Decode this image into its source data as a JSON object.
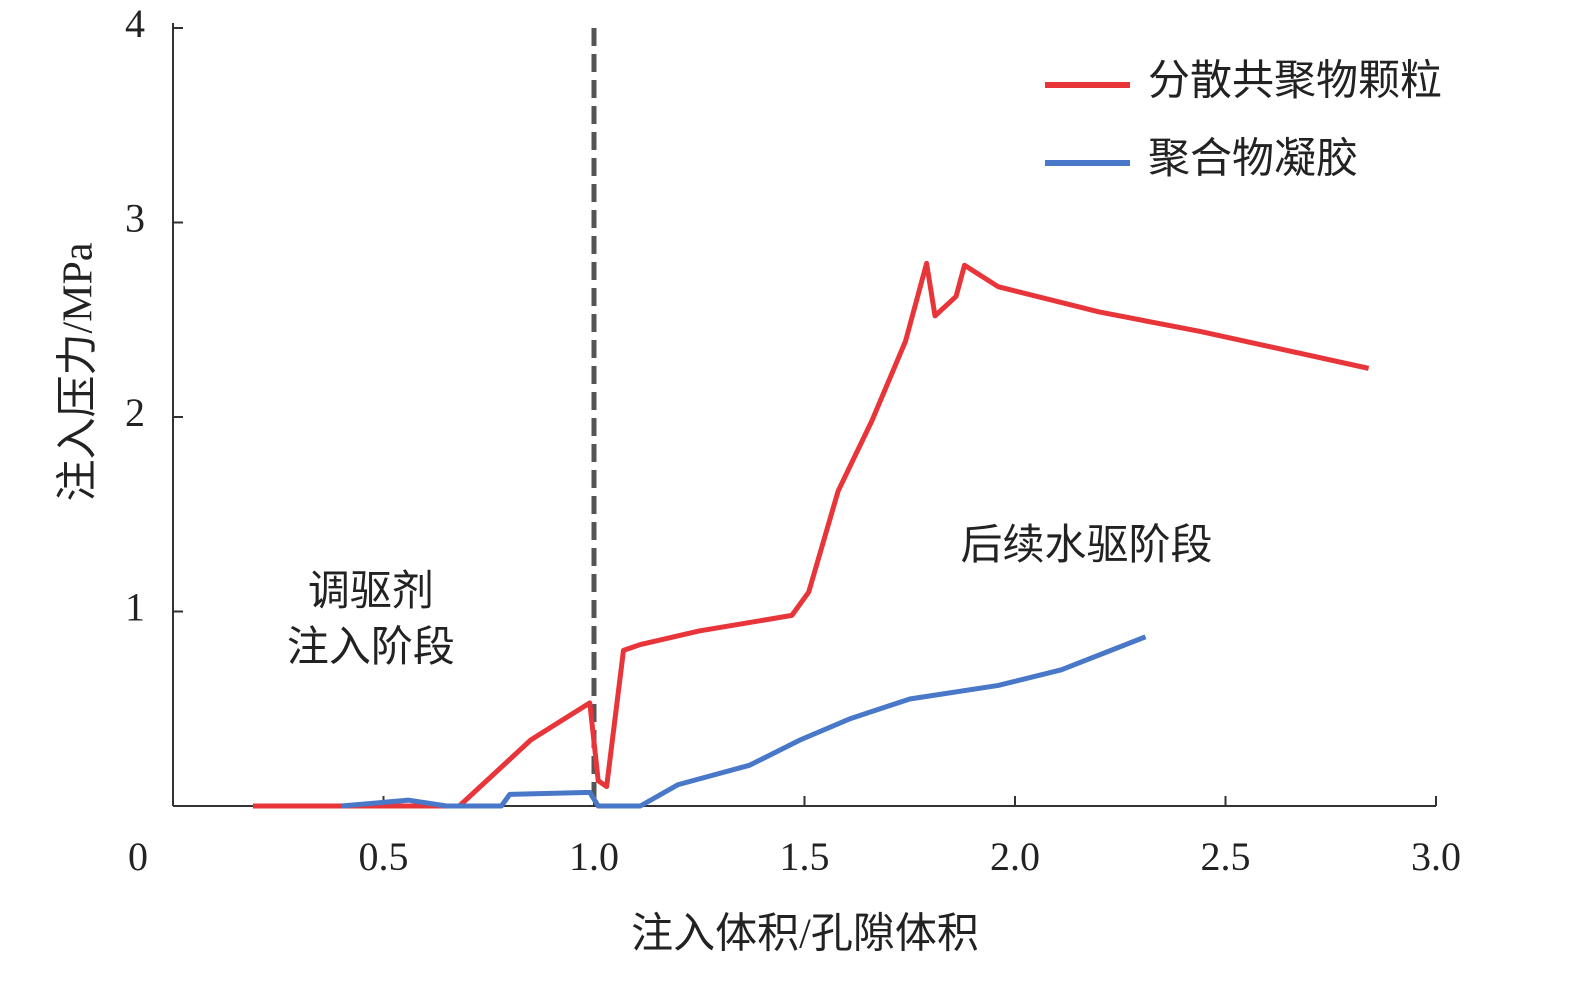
{
  "chart_data": {
    "type": "line",
    "xlabel": "注入体积/孔隙体积",
    "ylabel": "注入压力/MPa",
    "xlim": [
      0,
      3
    ],
    "ylim": [
      0,
      4
    ],
    "xticks": [
      0,
      {
        "value": 0.5,
        "label": "0.5"
      },
      {
        "value": 1,
        "label": "1.0"
      },
      {
        "value": 1.5,
        "label": "1.5"
      },
      {
        "value": 2,
        "label": "2.0"
      },
      {
        "value": 2.5,
        "label": "2.5"
      },
      {
        "value": 3,
        "label": "3.0"
      }
    ],
    "yticks": [
      1,
      2,
      3,
      4
    ],
    "vline": 1,
    "legend": "upper right",
    "annotations": [
      {
        "lines": [
          "调驱剂",
          "注入阶段"
        ],
        "x": 0.47,
        "y": 0.94
      },
      {
        "lines": [
          "后续水驱阶段"
        ],
        "x": 2.17,
        "y": 1.32
      }
    ],
    "series": [
      {
        "name": "分散共聚物颗粒",
        "color": "#e8353a",
        "x": [
          0.19,
          0.68,
          0.85,
          0.99,
          1.01,
          1.03,
          1.07,
          1.11,
          1.25,
          1.47,
          1.51,
          1.58,
          1.66,
          1.74,
          1.79,
          1.81,
          1.86,
          1.88,
          1.96,
          2.2,
          2.44,
          2.84
        ],
        "values": [
          0,
          0,
          0.34,
          0.53,
          0.13,
          0.1,
          0.8,
          0.83,
          0.9,
          0.98,
          1.1,
          1.62,
          1.98,
          2.39,
          2.79,
          2.52,
          2.62,
          2.78,
          2.67,
          2.54,
          2.44,
          2.25
        ]
      },
      {
        "name": "聚合物凝胶",
        "color": "#4a78c8",
        "x": [
          0.4,
          0.56,
          0.65,
          0.78,
          0.8,
          0.99,
          1.01,
          1.11,
          1.2,
          1.37,
          1.49,
          1.61,
          1.75,
          1.96,
          2.11,
          2.31
        ],
        "values": [
          0,
          0.03,
          0,
          0,
          0.06,
          0.07,
          0,
          0,
          0.11,
          0.21,
          0.34,
          0.45,
          0.55,
          0.62,
          0.7,
          0.87
        ]
      }
    ]
  }
}
